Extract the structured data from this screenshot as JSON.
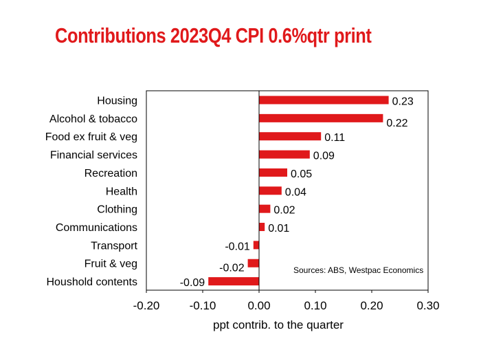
{
  "title": "Contributions 2023Q4 CPI 0.6%qtr print",
  "colors": {
    "title": "#e0191b",
    "bar": "#e0191b"
  },
  "chart_data": {
    "type": "bar",
    "orientation": "horizontal",
    "categories": [
      "Housing",
      "Alcohol & tobacco",
      "Food ex fruit & veg",
      "Financial services",
      "Recreation",
      "Health",
      "Clothing",
      "Communications",
      "Transport",
      "Fruit & veg",
      "Houshold contents"
    ],
    "values": [
      0.23,
      0.22,
      0.11,
      0.09,
      0.05,
      0.04,
      0.02,
      0.01,
      -0.01,
      -0.02,
      -0.09
    ],
    "value_labels": [
      "0.23",
      "0.22",
      "0.11",
      "0.09",
      "0.05",
      "0.04",
      "0.02",
      "0.01",
      "-0.01",
      "-0.02",
      "-0.09"
    ],
    "xlim": [
      -0.2,
      0.3
    ],
    "xticks": [
      -0.2,
      -0.1,
      0.0,
      0.1,
      0.2,
      0.3
    ],
    "xtick_labels": [
      "-0.20",
      "-0.10",
      "0.00",
      "0.10",
      "0.20",
      "0.30"
    ],
    "xlabel": "ppt contrib. to the quarter",
    "ylabel": "",
    "annotation": "Sources: ABS, Westpac Economics",
    "grid": false,
    "legend": "none"
  }
}
